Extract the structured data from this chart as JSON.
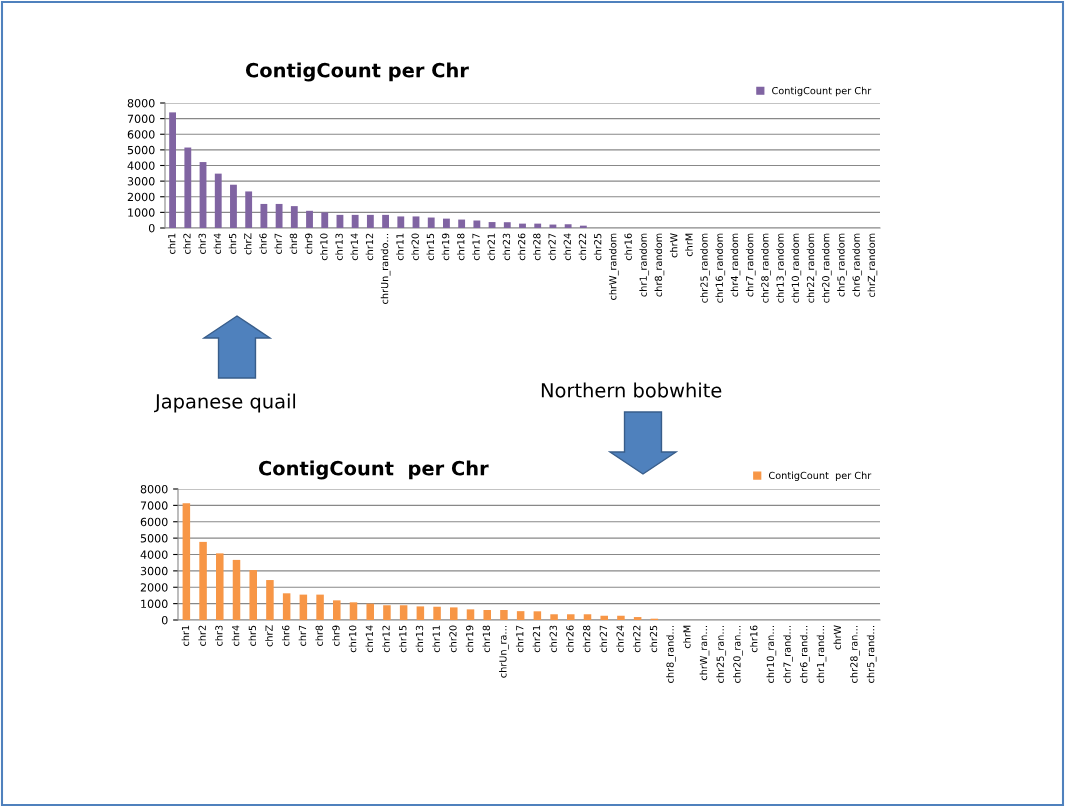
{
  "chart_data": [
    {
      "type": "bar",
      "title": "ContigCount per Chr",
      "categories": [
        "chr1",
        "chr2",
        "chr3",
        "chr4",
        "chr5",
        "chrZ",
        "chr6",
        "chr7",
        "chr8",
        "chr9",
        "chr10",
        "chr13",
        "chr14",
        "chr12",
        "chrUn_rando…",
        "chr11",
        "chr20",
        "chr15",
        "chr19",
        "chr18",
        "chr17",
        "chr21",
        "chr23",
        "chr26",
        "chr28",
        "chr27",
        "chr24",
        "chr22",
        "chr25",
        "chrW_random",
        "chr16",
        "chr1_random",
        "chr8_random",
        "chrW",
        "chrM",
        "chr25_random",
        "chr16_random",
        "chr4_random",
        "chr7_random",
        "chr28_random",
        "chr13_random",
        "chr10_random",
        "chr22_random",
        "chr20_random",
        "chr5_random",
        "chr6_random",
        "chrZ_random"
      ],
      "series": [
        {
          "name": "ContigCount per Chr",
          "color": "#8064a2",
          "values": [
            7400,
            5150,
            4220,
            3480,
            2770,
            2340,
            1540,
            1540,
            1400,
            1100,
            1000,
            840,
            840,
            840,
            840,
            740,
            740,
            670,
            600,
            540,
            480,
            380,
            370,
            280,
            280,
            220,
            240,
            150,
            0,
            0,
            0,
            0,
            0,
            0,
            0,
            0,
            0,
            0,
            0,
            0,
            0,
            0,
            0,
            0,
            0,
            0,
            0
          ]
        }
      ],
      "ylim": [
        0,
        8000
      ],
      "yticks": [
        0,
        1000,
        2000,
        3000,
        4000,
        5000,
        6000,
        7000,
        8000
      ],
      "grid": "y",
      "legend": "top right",
      "annotations": [
        "Japanese quail"
      ]
    },
    {
      "type": "bar",
      "title": "ContigCount  per Chr",
      "categories": [
        "chr1",
        "chr2",
        "chr3",
        "chr4",
        "chr5",
        "chrZ",
        "chr6",
        "chr7",
        "chr8",
        "chr9",
        "chr10",
        "chr14",
        "chr12",
        "chr15",
        "chr13",
        "chr11",
        "chr20",
        "chr19",
        "chr18",
        "chrUn_ra…",
        "chr17",
        "chr21",
        "chr23",
        "chr26",
        "chr28",
        "chr27",
        "chr24",
        "chr22",
        "chr25",
        "chr8_rand…",
        "chrM",
        "chrW_ran…",
        "chr25_ran…",
        "chr20_ran…",
        "chr16",
        "chr10_ran…",
        "chr7_rand…",
        "chr6_rand…",
        "chr1_rand…",
        "chrW",
        "chr28_ran…",
        "chr5_rand…"
      ],
      "series": [
        {
          "name": "ContigCount  per Chr",
          "color": "#f79646",
          "values": [
            7130,
            4770,
            4070,
            3670,
            3050,
            2440,
            1630,
            1550,
            1550,
            1200,
            1080,
            1000,
            900,
            900,
            830,
            810,
            770,
            650,
            610,
            610,
            540,
            530,
            350,
            350,
            350,
            260,
            260,
            180,
            80,
            0,
            0,
            0,
            0,
            0,
            0,
            0,
            0,
            0,
            0,
            0,
            0,
            0
          ]
        }
      ],
      "ylim": [
        0,
        8000
      ],
      "yticks": [
        0,
        1000,
        2000,
        3000,
        4000,
        5000,
        6000,
        7000,
        8000
      ],
      "grid": "y",
      "legend": "top right",
      "annotations": [
        "Northern bobwhite"
      ]
    }
  ]
}
